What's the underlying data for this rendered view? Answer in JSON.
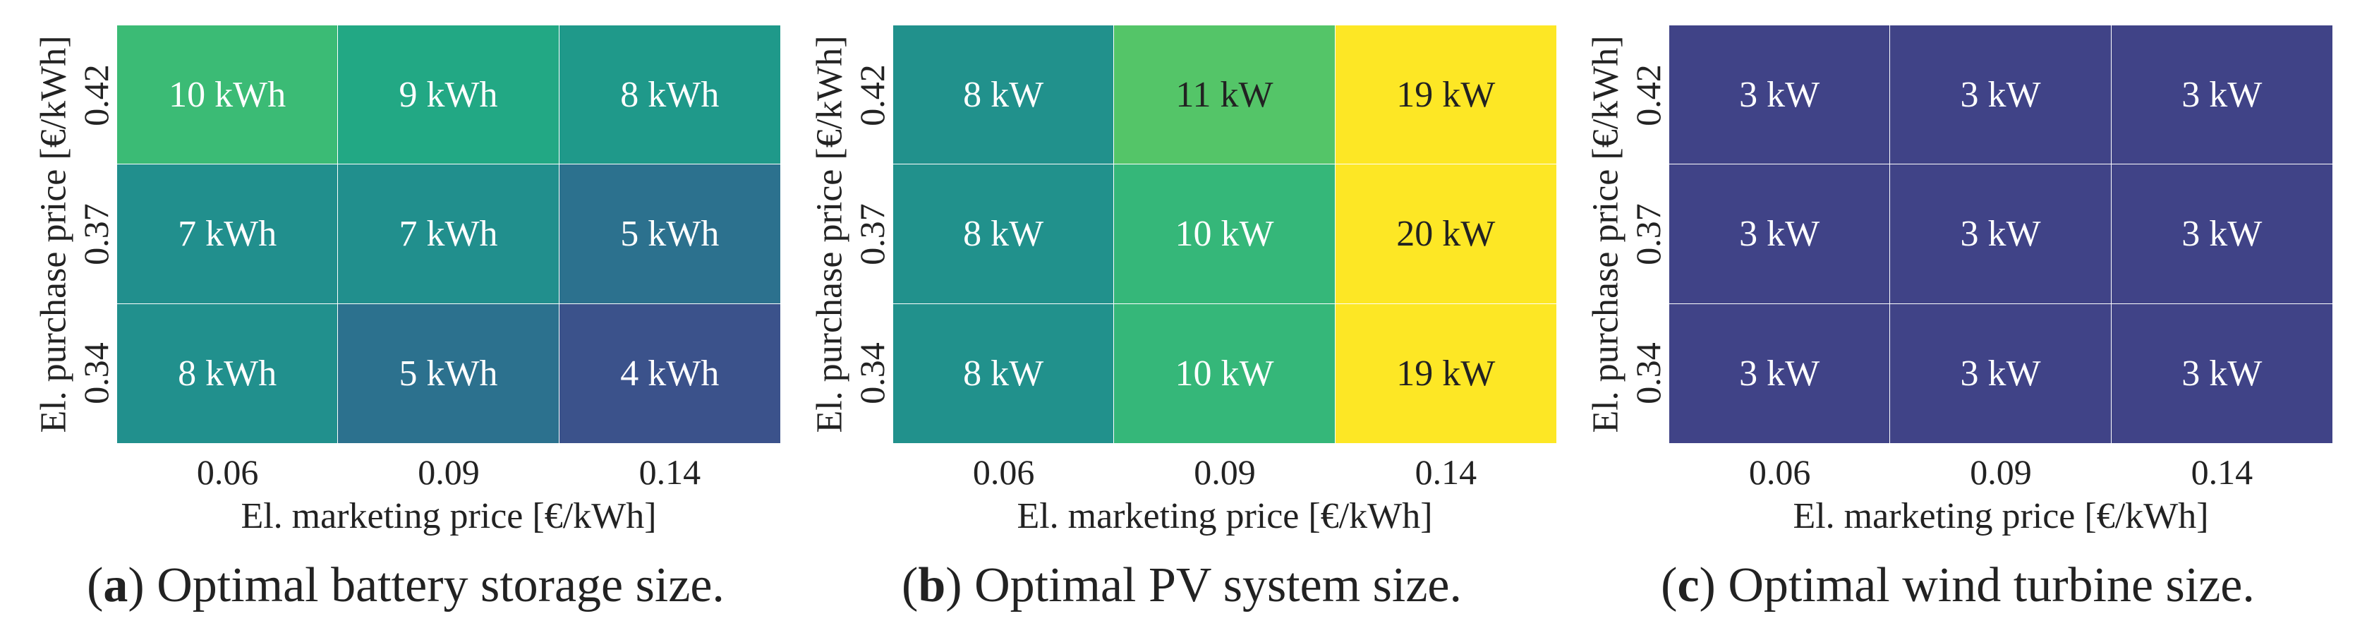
{
  "chart_data": [
    {
      "type": "heatmap",
      "title": "",
      "caption_letter": "a",
      "caption_text": "Optimal battery storage size.",
      "xlabel": "El. marketing price [€/kWh]",
      "ylabel": "El. purchase price [€/kWh]",
      "x_categories": [
        "0.06",
        "0.09",
        "0.14"
      ],
      "y_categories": [
        "0.42",
        "0.37",
        "0.34"
      ],
      "values": [
        [
          10,
          9,
          8
        ],
        [
          7,
          7,
          5
        ],
        [
          8,
          5,
          4
        ]
      ],
      "unit": "kWh",
      "colors": [
        [
          "#3bbb75",
          "#22a884",
          "#1f998a"
        ],
        [
          "#218f8d",
          "#218f8d",
          "#2c718e"
        ],
        [
          "#21908d",
          "#2c718e",
          "#3b528b"
        ]
      ],
      "text_colors": [
        [
          "#ffffff",
          "#ffffff",
          "#ffffff"
        ],
        [
          "#ffffff",
          "#ffffff",
          "#ffffff"
        ],
        [
          "#ffffff",
          "#ffffff",
          "#ffffff"
        ]
      ]
    },
    {
      "type": "heatmap",
      "title": "",
      "caption_letter": "b",
      "caption_text": "Optimal PV system size.",
      "xlabel": "El. marketing price [€/kWh]",
      "ylabel": "El. purchase price [€/kWh]",
      "x_categories": [
        "0.06",
        "0.09",
        "0.14"
      ],
      "y_categories": [
        "0.42",
        "0.37",
        "0.34"
      ],
      "values": [
        [
          8,
          11,
          19
        ],
        [
          8,
          10,
          20
        ],
        [
          8,
          10,
          19
        ]
      ],
      "unit": "kW",
      "colors": [
        [
          "#21918c",
          "#54c568",
          "#fde725"
        ],
        [
          "#21918c",
          "#35b779",
          "#fde725"
        ],
        [
          "#21918c",
          "#35b779",
          "#fde725"
        ]
      ],
      "text_colors": [
        [
          "#ffffff",
          "#222222",
          "#222222"
        ],
        [
          "#ffffff",
          "#ffffff",
          "#222222"
        ],
        [
          "#ffffff",
          "#ffffff",
          "#222222"
        ]
      ]
    },
    {
      "type": "heatmap",
      "title": "",
      "caption_letter": "c",
      "caption_text": "Optimal wind turbine size.",
      "xlabel": "El. marketing price [€/kWh]",
      "ylabel": "El. purchase price [€/kWh]",
      "x_categories": [
        "0.06",
        "0.09",
        "0.14"
      ],
      "y_categories": [
        "0.42",
        "0.37",
        "0.34"
      ],
      "values": [
        [
          3,
          3,
          3
        ],
        [
          3,
          3,
          3
        ],
        [
          3,
          3,
          3
        ]
      ],
      "unit": "kW",
      "colors": [
        [
          "#404387",
          "#404387",
          "#404387"
        ],
        [
          "#404387",
          "#404387",
          "#404387"
        ],
        [
          "#404387",
          "#404387",
          "#404387"
        ]
      ],
      "text_colors": [
        [
          "#ffffff",
          "#ffffff",
          "#ffffff"
        ],
        [
          "#ffffff",
          "#ffffff",
          "#ffffff"
        ],
        [
          "#ffffff",
          "#ffffff",
          "#ffffff"
        ]
      ]
    }
  ]
}
